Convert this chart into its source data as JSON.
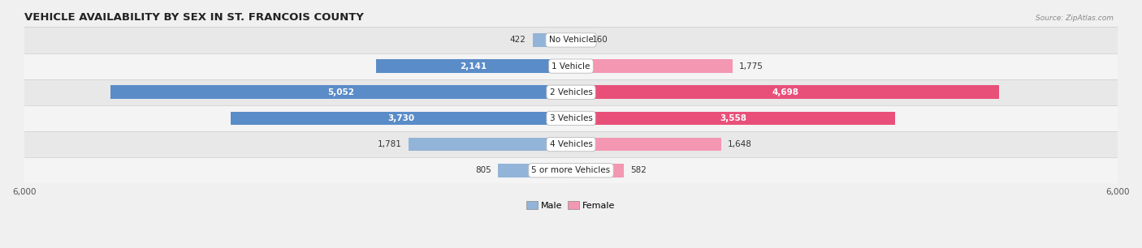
{
  "title": "VEHICLE AVAILABILITY BY SEX IN ST. FRANCOIS COUNTY",
  "source": "Source: ZipAtlas.com",
  "categories": [
    "No Vehicle",
    "1 Vehicle",
    "2 Vehicles",
    "3 Vehicles",
    "4 Vehicles",
    "5 or more Vehicles"
  ],
  "male_values": [
    422,
    2141,
    5052,
    3730,
    1781,
    805
  ],
  "female_values": [
    160,
    1775,
    4698,
    3558,
    1648,
    582
  ],
  "male_color": "#92b4d8",
  "female_color": "#f497b2",
  "male_color_strong": "#5a8cc8",
  "female_color_strong": "#e8507a",
  "xlim": 6000,
  "fig_bg": "#f0f0f0",
  "row_even_bg": "#e8e8e8",
  "row_odd_bg": "#f4f4f4",
  "pill_bg": "#f8f8f8",
  "title_fontsize": 9.5,
  "cat_fontsize": 7.5,
  "value_fontsize": 7.5,
  "axis_fontsize": 7.5,
  "legend_fontsize": 8,
  "bar_height": 0.52,
  "inside_threshold": 0.3
}
